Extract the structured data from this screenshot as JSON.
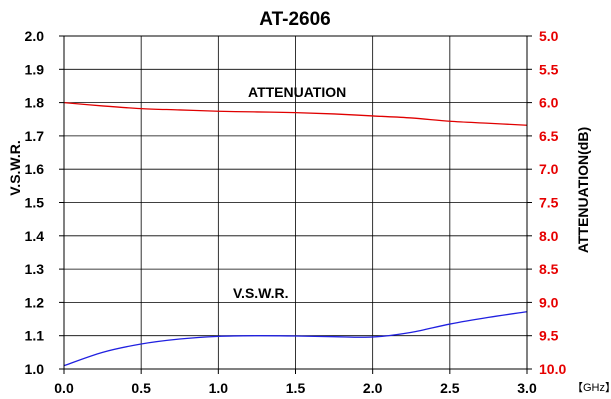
{
  "chart_data": {
    "type": "line",
    "title": "AT-2606",
    "xlabel": "",
    "x_unit": "【GHz】",
    "ylabel_left": "V.S.W.R.",
    "ylabel_right": "ATTENUATION(dB)",
    "xlim": [
      0.0,
      3.0
    ],
    "ylim_left": [
      1.0,
      2.0
    ],
    "ylim_right": [
      5.0,
      10.0
    ],
    "right_axis_inverted": true,
    "x_ticks": [
      "0.0",
      "0.5",
      "1.0",
      "1.5",
      "2.0",
      "2.5",
      "3.0"
    ],
    "y_ticks_left": [
      "1.0",
      "1.1",
      "1.2",
      "1.3",
      "1.4",
      "1.5",
      "1.6",
      "1.7",
      "1.8",
      "1.9",
      "2.0"
    ],
    "y_ticks_right": [
      "5.0",
      "5.5",
      "6.0",
      "6.5",
      "7.0",
      "7.5",
      "8.0",
      "8.5",
      "9.0",
      "9.5",
      "10.0"
    ],
    "grid": true,
    "colors": {
      "vswr": "#2020e0",
      "attenuation": "#e00000",
      "right_axis": "#e60000"
    },
    "annotations": {
      "attenuation": "ATTENUATION",
      "vswr": "V.S.W.R."
    },
    "series": [
      {
        "name": "V.S.W.R.",
        "axis": "left",
        "x": [
          0.0,
          0.25,
          0.5,
          0.75,
          1.0,
          1.25,
          1.5,
          1.75,
          2.0,
          2.25,
          2.5,
          2.75,
          3.0
        ],
        "y": [
          1.01,
          1.05,
          1.075,
          1.09,
          1.098,
          1.1,
          1.099,
          1.097,
          1.096,
          1.11,
          1.135,
          1.155,
          1.172
        ]
      },
      {
        "name": "ATTENUATION",
        "axis": "right",
        "x": [
          0.0,
          0.25,
          0.5,
          0.75,
          1.0,
          1.25,
          1.5,
          1.75,
          2.0,
          2.25,
          2.5,
          2.75,
          3.0
        ],
        "y": [
          6.0,
          6.05,
          6.09,
          6.11,
          6.13,
          6.14,
          6.15,
          6.17,
          6.2,
          6.23,
          6.28,
          6.31,
          6.34
        ]
      }
    ]
  }
}
